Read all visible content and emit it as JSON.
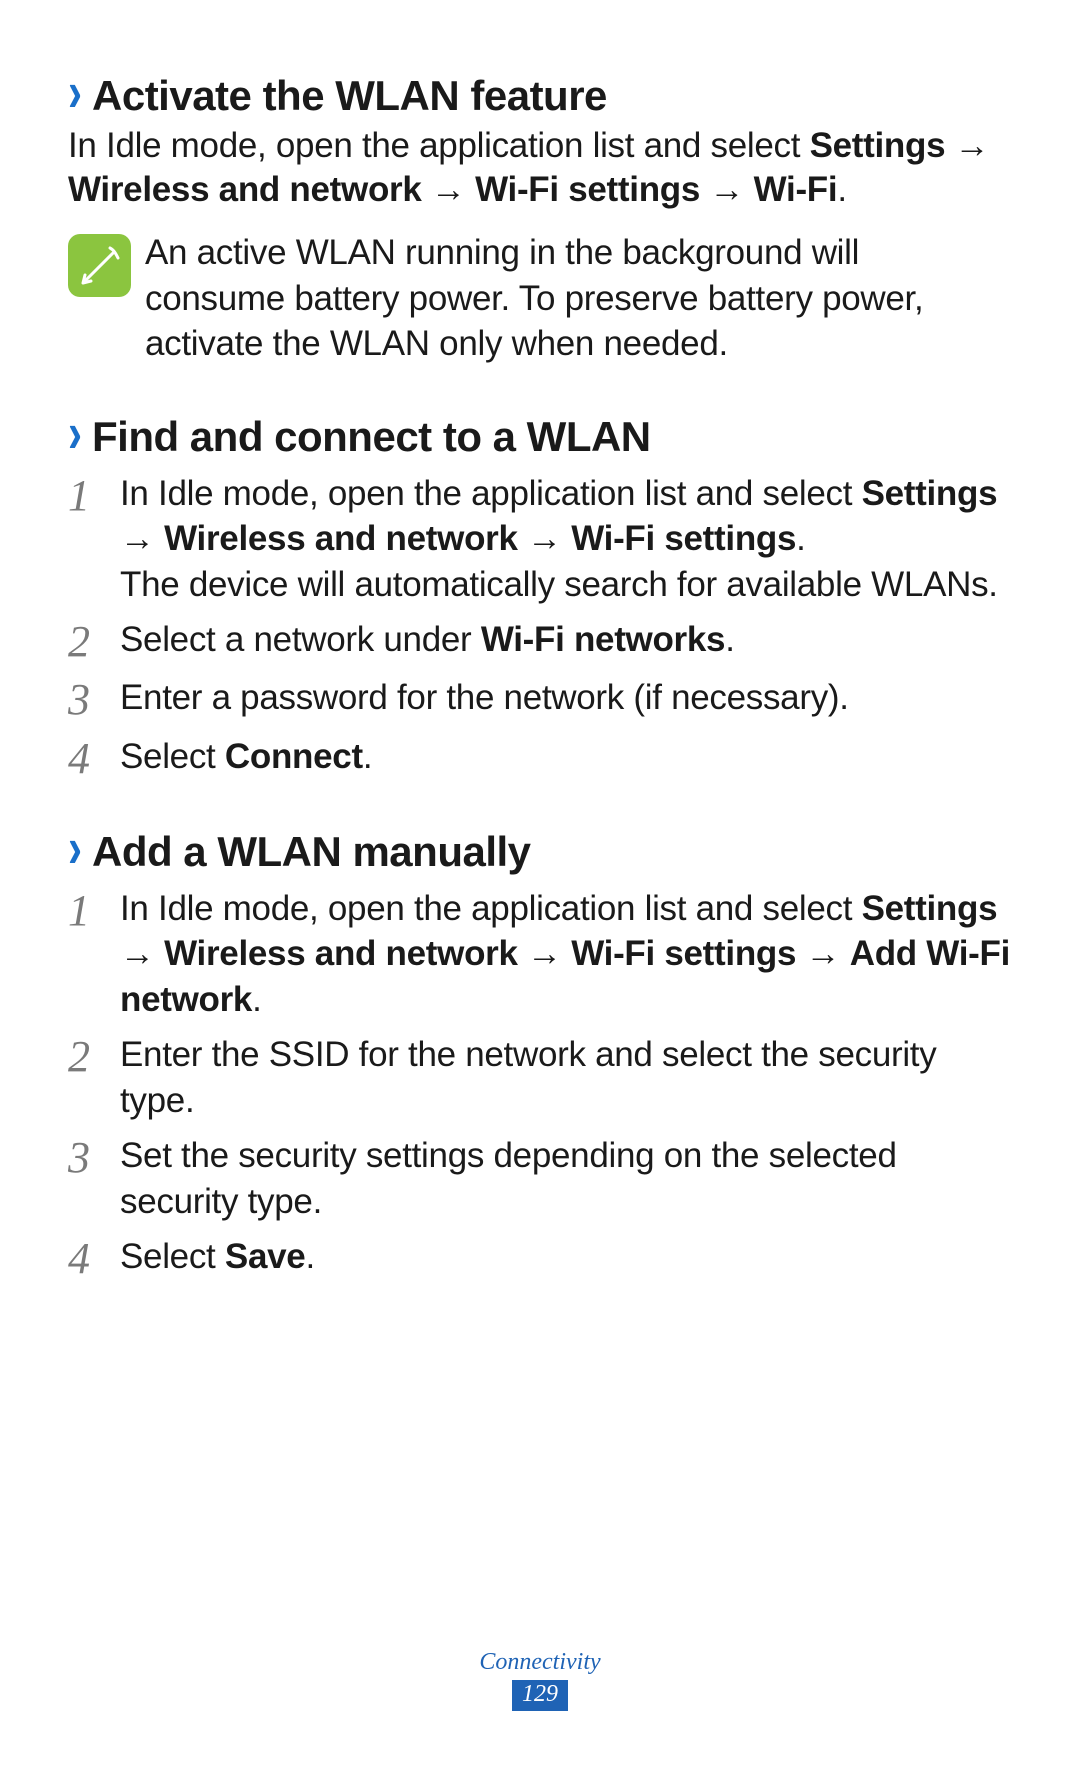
{
  "colors": {
    "text": "#1a1a1a",
    "chevron": "#1a6fc9",
    "note_icon_bg": "#8bc53f",
    "note_icon_stroke": "#ffffff",
    "step_num": "#7a7a7a",
    "footer_accent": "#1f63b5",
    "background": "#ffffff"
  },
  "typography": {
    "heading_fontsize": 42,
    "body_fontsize": 35,
    "step_num_fontsize": 44,
    "footer_fontsize": 24,
    "heading_weight": 700
  },
  "arrow_glyph": "→",
  "sections": [
    {
      "title": "Activate the WLAN feature",
      "intro_runs": [
        {
          "t": "In Idle mode, open the application list and select ",
          "b": false
        },
        {
          "t": "Settings",
          "b": true
        },
        {
          "t": " → ",
          "b": false
        },
        {
          "t": "Wireless and network",
          "b": true
        },
        {
          "t": " → ",
          "b": false
        },
        {
          "t": "Wi-Fi settings",
          "b": true
        },
        {
          "t": " → ",
          "b": false
        },
        {
          "t": "Wi-Fi",
          "b": true
        },
        {
          "t": ".",
          "b": false
        }
      ],
      "note": "An active WLAN running in the background will consume battery power. To preserve battery power, activate the WLAN only when needed.",
      "steps": []
    },
    {
      "title": "Find and connect to a WLAN",
      "steps": [
        {
          "num": "1",
          "runs": [
            {
              "t": "In Idle mode, open the application list and select ",
              "b": false
            },
            {
              "t": "Settings",
              "b": true
            },
            {
              "t": " → ",
              "b": false
            },
            {
              "t": "Wireless and network",
              "b": true
            },
            {
              "t": " → ",
              "b": false
            },
            {
              "t": "Wi-Fi settings",
              "b": true
            },
            {
              "t": ".",
              "b": false
            }
          ],
          "after": "The device will automatically search for available WLANs."
        },
        {
          "num": "2",
          "runs": [
            {
              "t": "Select a network under ",
              "b": false
            },
            {
              "t": "Wi-Fi networks",
              "b": true
            },
            {
              "t": ".",
              "b": false
            }
          ]
        },
        {
          "num": "3",
          "runs": [
            {
              "t": "Enter a password for the network (if necessary).",
              "b": false
            }
          ]
        },
        {
          "num": "4",
          "runs": [
            {
              "t": "Select ",
              "b": false
            },
            {
              "t": "Connect",
              "b": true
            },
            {
              "t": ".",
              "b": false
            }
          ]
        }
      ]
    },
    {
      "title": "Add a WLAN manually",
      "steps": [
        {
          "num": "1",
          "runs": [
            {
              "t": "In Idle mode, open the application list and select ",
              "b": false
            },
            {
              "t": "Settings",
              "b": true
            },
            {
              "t": " → ",
              "b": false
            },
            {
              "t": "Wireless and network",
              "b": true
            },
            {
              "t": " → ",
              "b": false
            },
            {
              "t": "Wi-Fi settings",
              "b": true
            },
            {
              "t": " → ",
              "b": false
            },
            {
              "t": "Add Wi-Fi network",
              "b": true
            },
            {
              "t": ".",
              "b": false
            }
          ]
        },
        {
          "num": "2",
          "runs": [
            {
              "t": "Enter the SSID for the network and select the security type.",
              "b": false
            }
          ]
        },
        {
          "num": "3",
          "runs": [
            {
              "t": "Set the security settings depending on the selected security type.",
              "b": false
            }
          ]
        },
        {
          "num": "4",
          "runs": [
            {
              "t": "Select ",
              "b": false
            },
            {
              "t": "Save",
              "b": true
            },
            {
              "t": ".",
              "b": false
            }
          ]
        }
      ]
    }
  ],
  "footer": {
    "section_label": "Connectivity",
    "page_number": "129"
  }
}
